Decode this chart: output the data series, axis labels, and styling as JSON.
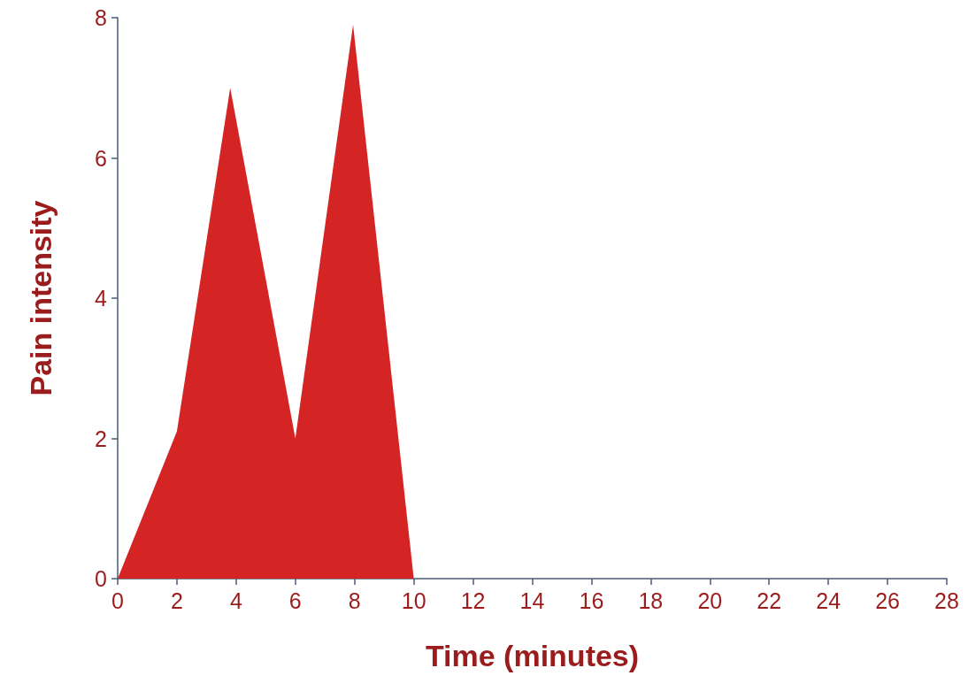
{
  "chart_data": {
    "type": "area",
    "xlabel": "Time (minutes)",
    "ylabel": "Pain intensity",
    "x": [
      0,
      2,
      3.8,
      6,
      7.95,
      10
    ],
    "series": [
      {
        "color": "#d42424",
        "values": [
          0,
          2.1,
          7.0,
          2.0,
          7.9,
          0
        ]
      }
    ],
    "xlim": [
      0,
      28
    ],
    "xticks": [
      0,
      2,
      4,
      6,
      8,
      10,
      12,
      14,
      16,
      18,
      20,
      22,
      24,
      26,
      28
    ],
    "ylim": [
      0,
      8
    ],
    "yticks": [
      0,
      2,
      4,
      6,
      8
    ],
    "grid": false
  }
}
